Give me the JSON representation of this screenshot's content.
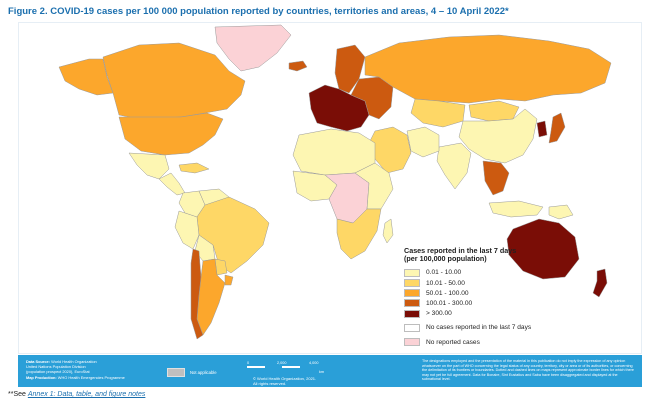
{
  "title": "Figure 2. COVID-19 cases per 100 000 population reported by countries, territories and areas, 4 – 10 April 2022*",
  "legend": {
    "title_line1": "Cases reported in the last 7 days",
    "title_line2": "(per 100,000 population)",
    "items": [
      {
        "label": "0.01 - 10.00",
        "color": "#fdf6b2"
      },
      {
        "label": "10.01 - 50.00",
        "color": "#fed766"
      },
      {
        "label": "50.01 - 100.00",
        "color": "#fca72c"
      },
      {
        "label": "100.01 - 300.00",
        "color": "#cc5a10"
      },
      {
        "label": "> 300.00",
        "color": "#7a0d06"
      },
      {
        "label": "No cases reported in the last 7 days",
        "color": "#ffffff"
      },
      {
        "label": "No reported cases",
        "color": "#fbd2d6"
      }
    ]
  },
  "regions": [
    {
      "name": "Greenland",
      "color": "#fbd2d6"
    },
    {
      "name": "Canada",
      "color": "#fca72c"
    },
    {
      "name": "Alaska",
      "color": "#fca72c"
    },
    {
      "name": "United States of America",
      "color": "#fca72c"
    },
    {
      "name": "Mexico",
      "color": "#fdf6b2"
    },
    {
      "name": "Central America",
      "color": "#fdf6b2"
    },
    {
      "name": "Caribbean",
      "color": "#fed766"
    },
    {
      "name": "Colombia",
      "color": "#fdf6b2"
    },
    {
      "name": "Venezuela",
      "color": "#fdf6b2"
    },
    {
      "name": "Brazil",
      "color": "#fed766"
    },
    {
      "name": "Peru",
      "color": "#fdf6b2"
    },
    {
      "name": "Bolivia",
      "color": "#fdf6b2"
    },
    {
      "name": "Paraguay",
      "color": "#fed766"
    },
    {
      "name": "Argentina",
      "color": "#fca72c"
    },
    {
      "name": "Chile",
      "color": "#cc5a10"
    },
    {
      "name": "Uruguay",
      "color": "#fca72c"
    },
    {
      "name": "Iceland",
      "color": "#cc5a10"
    },
    {
      "name": "Scandinavia",
      "color": "#cc5a10"
    },
    {
      "name": "Western Europe",
      "color": "#7a0d06"
    },
    {
      "name": "Eastern Europe",
      "color": "#cc5a10"
    },
    {
      "name": "Russian Federation",
      "color": "#fca72c"
    },
    {
      "name": "Kazakhstan",
      "color": "#fed766"
    },
    {
      "name": "Mongolia",
      "color": "#fed766"
    },
    {
      "name": "China",
      "color": "#fdf6b2"
    },
    {
      "name": "Korea",
      "color": "#7a0d06"
    },
    {
      "name": "Japan",
      "color": "#cc5a10"
    },
    {
      "name": "India",
      "color": "#fdf6b2"
    },
    {
      "name": "Middle East",
      "color": "#fed766"
    },
    {
      "name": "Iran",
      "color": "#fdf6b2"
    },
    {
      "name": "North Africa",
      "color": "#fdf6b2"
    },
    {
      "name": "West Africa",
      "color": "#fdf6b2"
    },
    {
      "name": "Central Africa",
      "color": "#fbd2d6"
    },
    {
      "name": "East Africa",
      "color": "#fdf6b2"
    },
    {
      "name": "Southern Africa",
      "color": "#fed766"
    },
    {
      "name": "Madagascar",
      "color": "#fdf6b2"
    },
    {
      "name": "Southeast Asia",
      "color": "#cc5a10"
    },
    {
      "name": "Indonesia",
      "color": "#fdf6b2"
    },
    {
      "name": "Papua New Guinea",
      "color": "#fdf6b2"
    },
    {
      "name": "Australia",
      "color": "#7a0d06"
    },
    {
      "name": "New Zealand",
      "color": "#7a0d06"
    }
  ],
  "colors": {
    "ocean": "#ffffff",
    "border": "#9a9a9a",
    "footer": "#2a9fd8",
    "title": "#1b6fae"
  },
  "footer": {
    "data_source_label": "Data Source:",
    "data_source_text": "World Health Organization",
    "line2": "United Nations Population Division",
    "line3": "(population prospect 2020), EuroStat",
    "map_production_label": "Map Production:",
    "map_production_text": "WHO Health Emergencies Programme",
    "not_applicable": "Not applicable",
    "scale_labels": [
      "0",
      "2,000",
      "4,000"
    ],
    "scale_unit": "km",
    "copyright_line1": "© World Health Organization, 2021.",
    "copyright_line2": "All rights reserved.",
    "disclaimer": "The designations employed and the presentation of the material in this publication do not imply the expression of any opinion whatsoever on the part of WHO concerning the legal status of any country, territory, city or area or of its authorities, or concerning the delimitation of its frontiers or boundaries. Dotted and dashed lines on maps represent approximate border lines for which there may not yet be full agreement. Data for Bonaire, Sint Eustatius and Saba have been disaggregated and displayed at the subnational level."
  },
  "footnote": {
    "prefix": "**See ",
    "link_text": "Annex 1: Data, table, and figure notes"
  }
}
